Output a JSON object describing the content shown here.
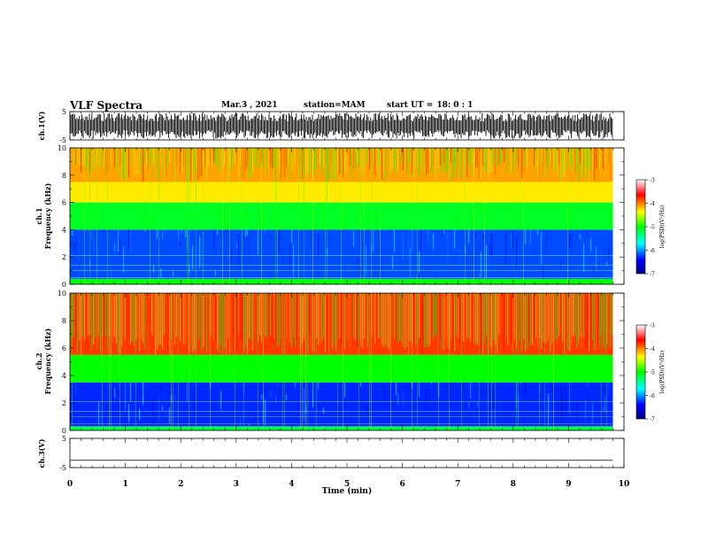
{
  "header": {
    "title": "VLF Spectra",
    "date": "Mar.3 , 2021",
    "station": "station=MAM",
    "start_label": "start UT =",
    "start_time": "18: 0 : 1"
  },
  "chart_data": [
    {
      "type": "line",
      "panel": "ch1-waveform",
      "ylabel": "ch.1(V)",
      "ylim": [
        -5,
        5
      ],
      "yticks": [
        "5",
        "-5"
      ],
      "xlim": [
        0,
        10
      ],
      "data_end_min": 9.8,
      "description_values": {
        "waveform_amplitude_min": -4.5,
        "waveform_amplitude_max": 4.5
      }
    },
    {
      "type": "heatmap",
      "panel": "ch1-spectrogram",
      "ylabel_line1": "ch.1",
      "ylabel_line2": "Frequency (kHz)",
      "ylim": [
        0,
        10
      ],
      "yticks": [
        "0",
        "2",
        "4",
        "6",
        "8",
        "10"
      ],
      "xlim": [
        0,
        10
      ],
      "data_end_min": 9.8,
      "colorbar": {
        "label": "log(PSD)(V²/Hz)",
        "ticks": [
          "-3",
          "-4",
          "-5",
          "-6",
          "-7"
        ],
        "range": [
          -7,
          -3
        ]
      },
      "bands_khz": [
        {
          "from": 0.0,
          "to": 0.4,
          "log_psd": -5.0
        },
        {
          "from": 0.4,
          "to": 4.0,
          "log_psd": -6.2
        },
        {
          "from": 4.0,
          "to": 6.0,
          "log_psd": -5.1
        },
        {
          "from": 6.0,
          "to": 7.5,
          "log_psd": -4.3
        },
        {
          "from": 7.5,
          "to": 10.0,
          "log_psd": -4.1
        }
      ]
    },
    {
      "type": "heatmap",
      "panel": "ch2-spectrogram",
      "ylabel_line1": "ch.2",
      "ylabel_line2": "Frequency (kHz)",
      "ylim": [
        0,
        10
      ],
      "yticks": [
        "0",
        "2",
        "4",
        "6",
        "8",
        "10"
      ],
      "xlim": [
        0,
        10
      ],
      "data_end_min": 9.8,
      "colorbar": {
        "label": "log(PSD)(V²/Hz)",
        "ticks": [
          "-3",
          "-4",
          "-5",
          "-6",
          "-7"
        ],
        "range": [
          -7,
          -3
        ]
      },
      "bands_khz": [
        {
          "from": 0.0,
          "to": 0.3,
          "log_psd": -5.2
        },
        {
          "from": 0.3,
          "to": 3.5,
          "log_psd": -6.3
        },
        {
          "from": 3.5,
          "to": 5.5,
          "log_psd": -5.0
        },
        {
          "from": 5.5,
          "to": 10.0,
          "log_psd": -3.8
        }
      ]
    },
    {
      "type": "line",
      "panel": "ch3-waveform",
      "ylabel": "ch.3(V)",
      "ylim": [
        -5,
        5
      ],
      "yticks": [
        "5",
        "-5"
      ],
      "xlim": [
        0,
        10
      ],
      "data_end_min": 9.8,
      "constant_value": -2.5
    }
  ],
  "x_axis": {
    "label": "Time (min)",
    "ticks": [
      "0",
      "1",
      "2",
      "3",
      "4",
      "5",
      "6",
      "7",
      "8",
      "9",
      "10"
    ]
  },
  "colors": {
    "line": "#000000",
    "background": "#ffffff"
  }
}
